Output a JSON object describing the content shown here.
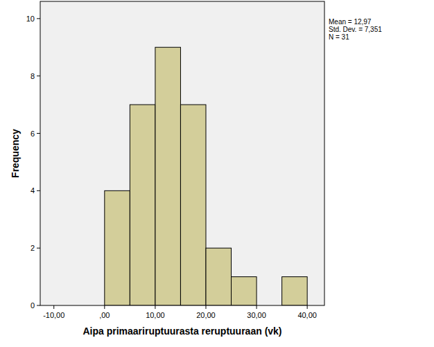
{
  "chart_data": {
    "type": "histogram",
    "x_label": "Aipa primaariruptuurasta reruptuuraan (vk)",
    "y_label": "Frequency",
    "annotations": [
      "Mean = 12,97",
      "Std. Dev. = 7,351",
      "N = 31"
    ],
    "bins": [
      0,
      5,
      10,
      15,
      20,
      25,
      30,
      35,
      40
    ],
    "counts": [
      4,
      7,
      9,
      7,
      2,
      1,
      0,
      1
    ],
    "color": "#d3ce9a",
    "xlim": [
      -12.7,
      43.4
    ],
    "xticks": [
      {
        "value": -10,
        "label": "-10,00"
      },
      {
        "value": 0,
        "label": ",00"
      },
      {
        "value": 10,
        "label": "10,00"
      },
      {
        "value": 20,
        "label": "20,00"
      },
      {
        "value": 30,
        "label": "30,00"
      },
      {
        "value": 40,
        "label": "40,00"
      }
    ],
    "ylim": [
      0,
      10.6
    ],
    "yticks": [
      0,
      2,
      4,
      6,
      8,
      10
    ],
    "grid": false
  }
}
